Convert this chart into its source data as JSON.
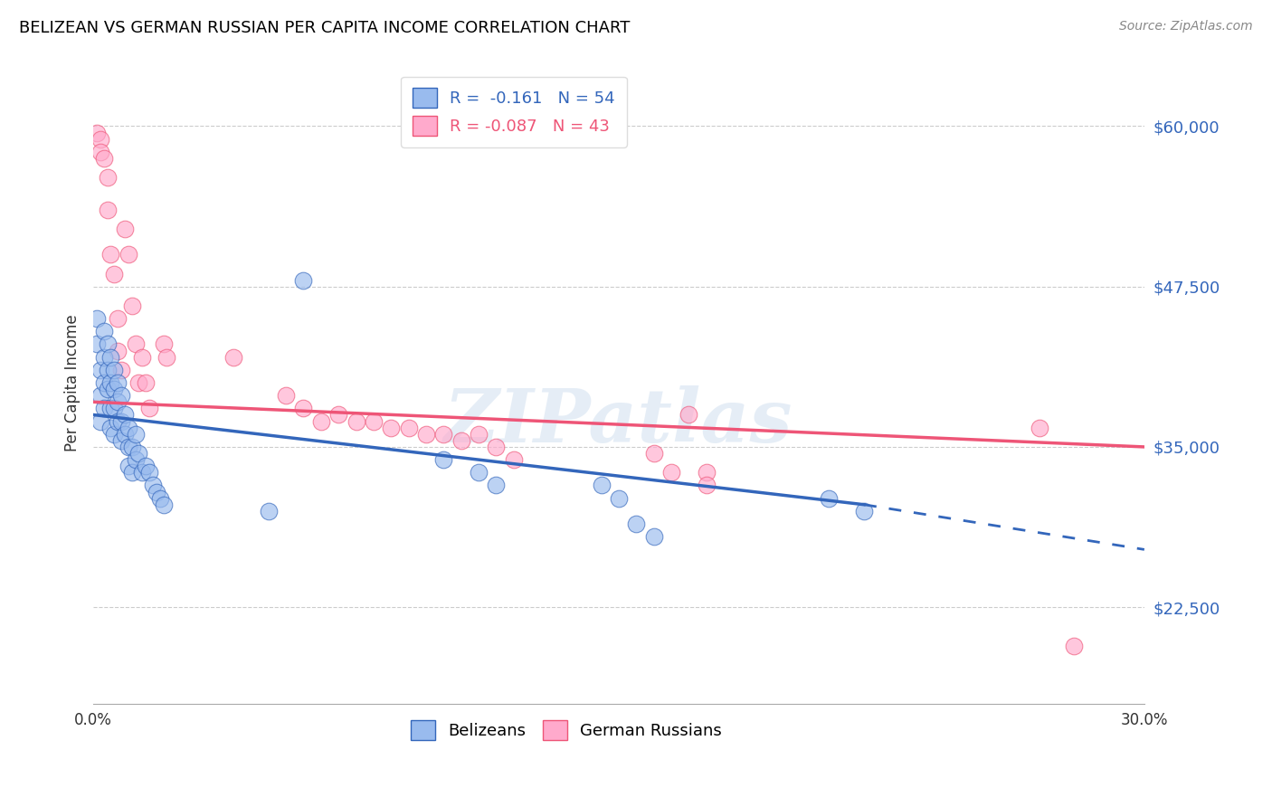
{
  "title": "BELIZEAN VS GERMAN RUSSIAN PER CAPITA INCOME CORRELATION CHART",
  "source": "Source: ZipAtlas.com",
  "ylabel": "Per Capita Income",
  "xlim": [
    0.0,
    0.3
  ],
  "ylim": [
    15000,
    65000
  ],
  "yticks": [
    22500,
    35000,
    47500,
    60000
  ],
  "ytick_labels": [
    "$22,500",
    "$35,000",
    "$47,500",
    "$60,000"
  ],
  "xticks": [
    0.0,
    0.05,
    0.1,
    0.15,
    0.2,
    0.25,
    0.3
  ],
  "xtick_labels": [
    "0.0%",
    "",
    "",
    "",
    "",
    "",
    "30.0%"
  ],
  "blue_R": -0.161,
  "blue_N": 54,
  "pink_R": -0.087,
  "pink_N": 43,
  "blue_color": "#99BBEE",
  "pink_color": "#FFAACC",
  "blue_line_color": "#3366BB",
  "pink_line_color": "#EE5577",
  "watermark": "ZIPatlas",
  "blue_scatter_x": [
    0.001,
    0.001,
    0.002,
    0.002,
    0.002,
    0.003,
    0.003,
    0.003,
    0.003,
    0.004,
    0.004,
    0.004,
    0.005,
    0.005,
    0.005,
    0.005,
    0.006,
    0.006,
    0.006,
    0.006,
    0.007,
    0.007,
    0.007,
    0.008,
    0.008,
    0.008,
    0.009,
    0.009,
    0.01,
    0.01,
    0.01,
    0.011,
    0.011,
    0.012,
    0.012,
    0.013,
    0.014,
    0.015,
    0.016,
    0.017,
    0.018,
    0.019,
    0.02,
    0.05,
    0.06,
    0.1,
    0.11,
    0.115,
    0.145,
    0.15,
    0.155,
    0.16,
    0.21,
    0.22
  ],
  "blue_scatter_y": [
    45000,
    43000,
    41000,
    39000,
    37000,
    44000,
    42000,
    40000,
    38000,
    43000,
    41000,
    39500,
    42000,
    40000,
    38000,
    36500,
    41000,
    39500,
    38000,
    36000,
    40000,
    38500,
    37000,
    39000,
    37000,
    35500,
    37500,
    36000,
    36500,
    35000,
    33500,
    35000,
    33000,
    36000,
    34000,
    34500,
    33000,
    33500,
    33000,
    32000,
    31500,
    31000,
    30500,
    30000,
    48000,
    34000,
    33000,
    32000,
    32000,
    31000,
    29000,
    28000,
    31000,
    30000
  ],
  "pink_scatter_x": [
    0.001,
    0.002,
    0.002,
    0.003,
    0.004,
    0.004,
    0.005,
    0.006,
    0.007,
    0.007,
    0.008,
    0.009,
    0.01,
    0.011,
    0.012,
    0.013,
    0.014,
    0.015,
    0.016,
    0.02,
    0.021,
    0.04,
    0.055,
    0.06,
    0.065,
    0.07,
    0.075,
    0.08,
    0.085,
    0.09,
    0.095,
    0.1,
    0.105,
    0.11,
    0.115,
    0.12,
    0.16,
    0.165,
    0.17,
    0.175,
    0.175,
    0.27,
    0.28
  ],
  "pink_scatter_y": [
    59500,
    59000,
    58000,
    57500,
    56000,
    53500,
    50000,
    48500,
    45000,
    42500,
    41000,
    52000,
    50000,
    46000,
    43000,
    40000,
    42000,
    40000,
    38000,
    43000,
    42000,
    42000,
    39000,
    38000,
    37000,
    37500,
    37000,
    37000,
    36500,
    36500,
    36000,
    36000,
    35500,
    36000,
    35000,
    34000,
    34500,
    33000,
    37500,
    33000,
    32000,
    36500,
    19500
  ],
  "blue_line_y0": 37500,
  "blue_line_y_at_022": 30500,
  "blue_line_y_at_030": 27000,
  "pink_line_y0": 38500,
  "pink_line_y_at_030": 35000
}
